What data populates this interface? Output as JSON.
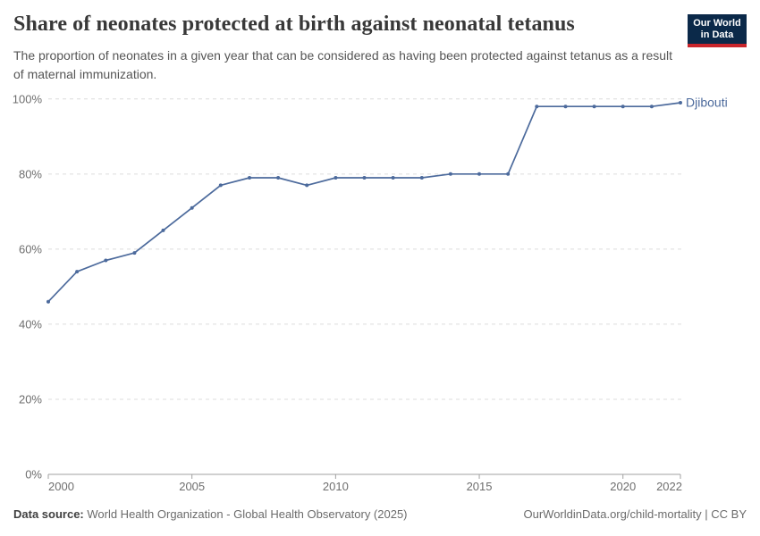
{
  "header": {
    "title": "Share of neonates protected at birth against neonatal tetanus",
    "subtitle": "The proportion of neonates in a given year that can be considered as having been protected against tetanus as a result of maternal immunization.",
    "logo_line1": "Our World",
    "logo_line2": "in Data"
  },
  "chart_data": {
    "type": "line",
    "title": "Share of neonates protected at birth against neonatal tetanus",
    "x": [
      2000,
      2001,
      2002,
      2003,
      2004,
      2005,
      2006,
      2007,
      2008,
      2009,
      2010,
      2011,
      2012,
      2013,
      2014,
      2015,
      2016,
      2017,
      2018,
      2019,
      2020,
      2021,
      2022
    ],
    "series": [
      {
        "name": "Djibouti",
        "values": [
          46,
          54,
          57,
          59,
          65,
          71,
          77,
          79,
          79,
          77,
          79,
          79,
          79,
          79,
          80,
          80,
          80,
          98,
          98,
          98,
          98,
          98,
          99
        ]
      }
    ],
    "xlabel": "",
    "ylabel": "",
    "ylim": [
      0,
      100
    ],
    "yticks": [
      0,
      20,
      40,
      60,
      80,
      100
    ],
    "ytick_suffix": "%",
    "xticks": [
      2000,
      2005,
      2010,
      2015,
      2020,
      2022
    ],
    "grid": "horizontal-dashed",
    "legend": "line-end-label",
    "line_color": "#4C6A9C",
    "marker": "circle"
  },
  "footer": {
    "source_label": "Data source:",
    "source_text": " World Health Organization - Global Health Observatory (2025)",
    "attribution": "OurWorldinData.org/child-mortality | CC BY"
  },
  "colors": {
    "accent_line": "#4C6A9C",
    "logo_bg": "#0b2949",
    "logo_stripe": "#c9252b",
    "title_text": "#383838",
    "subtitle_text": "#555555",
    "tick_text": "#6e6e6e",
    "gridline": "#dcdcdc",
    "axis": "#a0a0a0"
  }
}
